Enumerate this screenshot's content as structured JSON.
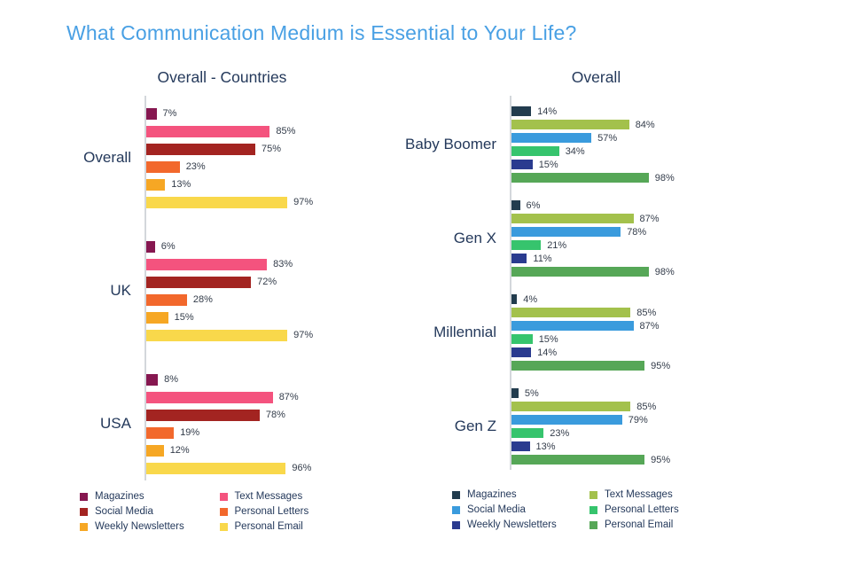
{
  "page_title": "What Communication Medium is Essential to Your Life?",
  "colors": {
    "title_text": "#49a0e4",
    "heading_text": "#24395b",
    "axis_line": "#d3d7db",
    "value_label_text": "#333c4a"
  },
  "chart_data": [
    {
      "type": "bar",
      "orientation": "horizontal",
      "title": "Overall - Countries",
      "xlim": [
        0,
        100
      ],
      "value_suffix": "%",
      "grid": false,
      "legend_position": "bottom",
      "series": [
        {
          "name": "Magazines",
          "color": "#861750"
        },
        {
          "name": "Text Messages",
          "color": "#f4537e"
        },
        {
          "name": "Social Media",
          "color": "#a32421"
        },
        {
          "name": "Personal Letters",
          "color": "#f2682c"
        },
        {
          "name": "Weekly Newsletters",
          "color": "#f6a724"
        },
        {
          "name": "Personal Email",
          "color": "#f9d84b"
        }
      ],
      "categories": [
        "Overall",
        "UK",
        "USA"
      ],
      "values": [
        [
          7,
          85,
          75,
          23,
          13,
          97
        ],
        [
          6,
          83,
          72,
          28,
          15,
          97
        ],
        [
          8,
          87,
          78,
          19,
          12,
          96
        ]
      ],
      "legend_columns": [
        [
          0,
          2,
          4
        ],
        [
          1,
          3,
          5
        ]
      ]
    },
    {
      "type": "bar",
      "orientation": "horizontal",
      "title": "Overall",
      "xlim": [
        0,
        100
      ],
      "value_suffix": "%",
      "grid": false,
      "legend_position": "bottom",
      "series": [
        {
          "name": "Magazines",
          "color": "#223c4e"
        },
        {
          "name": "Text Messages",
          "color": "#a3c14c"
        },
        {
          "name": "Social Media",
          "color": "#3a9bdd"
        },
        {
          "name": "Personal Letters",
          "color": "#36c46d"
        },
        {
          "name": "Weekly Newsletters",
          "color": "#2a3b8f"
        },
        {
          "name": "Personal Email",
          "color": "#56a757"
        }
      ],
      "categories": [
        "Baby Boomer",
        "Gen X",
        "Millennial",
        "Gen Z"
      ],
      "values": [
        [
          14,
          84,
          57,
          34,
          15,
          98
        ],
        [
          6,
          87,
          78,
          21,
          11,
          98
        ],
        [
          4,
          85,
          87,
          15,
          14,
          95
        ],
        [
          5,
          85,
          79,
          23,
          13,
          95
        ]
      ],
      "legend_columns": [
        [
          0,
          2,
          4
        ],
        [
          1,
          3,
          5
        ]
      ]
    }
  ]
}
